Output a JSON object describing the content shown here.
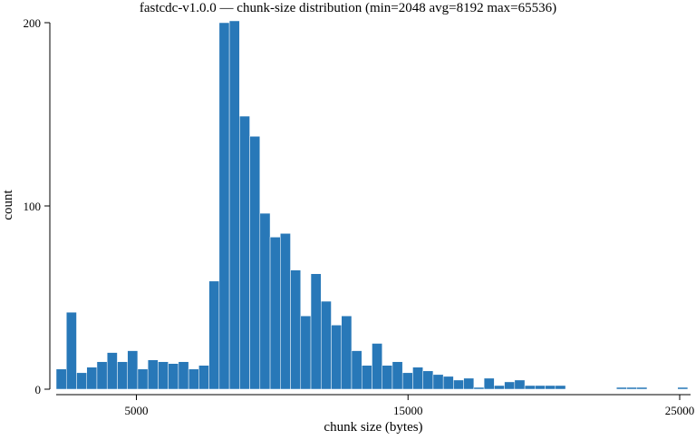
{
  "chart_data": {
    "type": "bar",
    "title": "fastcdc-v1.0.0 — chunk-size distribution (min=2048 avg=8192 max=65536)",
    "xlabel": "chunk size (bytes)",
    "ylabel": "count",
    "xlim": [
      2048,
      25400
    ],
    "ylim": [
      0,
      200
    ],
    "x_ticks": [
      5000,
      15000,
      25000
    ],
    "y_ticks": [
      0,
      100,
      200
    ],
    "grid": false,
    "bar_color": "#2878b8",
    "bin_width": 375,
    "bin_starts": [
      2048,
      2423,
      2798,
      3173,
      3548,
      3923,
      4298,
      4673,
      5048,
      5423,
      5798,
      6173,
      6548,
      6923,
      7298,
      7673,
      8048,
      8423,
      8798,
      9173,
      9548,
      9923,
      10298,
      10673,
      11048,
      11423,
      11798,
      12173,
      12548,
      12923,
      13298,
      13673,
      14048,
      14423,
      14798,
      15173,
      15548,
      15923,
      16298,
      16673,
      17048,
      17423,
      17798,
      18173,
      18548,
      18923,
      19298,
      19673,
      20048,
      20423,
      20798,
      21173,
      21548,
      21923,
      22298,
      22673,
      23048,
      23423,
      23798,
      24173,
      24548,
      24923
    ],
    "values": [
      11,
      42,
      9,
      12,
      15,
      20,
      15,
      21,
      11,
      16,
      15,
      14,
      15,
      11,
      13,
      59,
      200,
      201,
      149,
      138,
      96,
      83,
      85,
      65,
      40,
      63,
      48,
      35,
      40,
      21,
      13,
      25,
      13,
      15,
      9,
      12,
      10,
      8,
      7,
      5,
      6,
      1,
      6,
      2,
      4,
      5,
      2,
      2,
      2,
      2,
      0,
      0,
      0,
      0,
      0,
      1,
      1,
      1,
      0,
      0,
      0,
      1
    ]
  }
}
